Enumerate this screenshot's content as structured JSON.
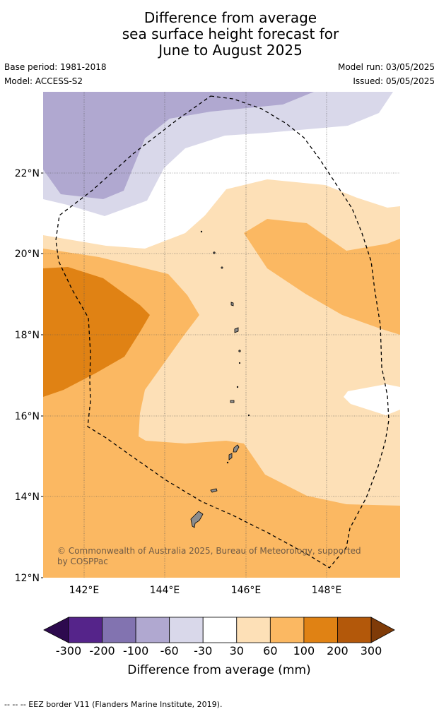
{
  "header": {
    "title_lines": [
      "Difference from average",
      "sea surface height forecast for",
      "June to August 2025"
    ],
    "base_period": "Base period: 1981-2018",
    "model": "Model: ACCESS-S2",
    "model_run": "Model run: 03/05/2025",
    "issued": "Issued: 05/05/2025"
  },
  "map": {
    "lat_ticks": [
      "22°N",
      "20°N",
      "18°N",
      "16°N",
      "14°N",
      "12°N"
    ],
    "lon_ticks": [
      "142°E",
      "144°E",
      "146°E",
      "148°E"
    ],
    "copyright_lines": [
      "© Commonwealth of Australia 2025, Bureau of Meteorology, supported",
      "by COSPPac"
    ]
  },
  "legend": {
    "title": "Difference from average (mm)",
    "labels": [
      "-300",
      "-200",
      "-100",
      "-60",
      "-30",
      "30",
      "60",
      "100",
      "200",
      "300"
    ],
    "colors": {
      "below_min": "#2d0a4e",
      "bins": [
        "#55248a",
        "#8273b0",
        "#b0a8d0",
        "#d9d8ea",
        "#ffffff",
        "#fde0b7",
        "#fbb862",
        "#e08214",
        "#b3580a"
      ],
      "above_max": "#7f3b08"
    }
  },
  "footer": {
    "eez_note": "--  --  -- EEZ border V11 (Flanders Marine Institute, 2019)."
  }
}
